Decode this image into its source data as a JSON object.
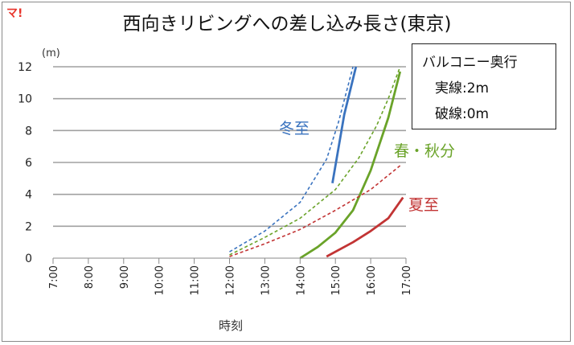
{
  "brand": "マ!",
  "chart_data": {
    "type": "line",
    "title": "西向きリビングへの差し込み長さ(東京)",
    "xlabel": "時刻",
    "ylabel": "",
    "yunit": "(m)",
    "xlim": [
      "7:00",
      "17:00"
    ],
    "ylim": [
      0,
      12
    ],
    "y_ticks": [
      0,
      2,
      4,
      6,
      8,
      10,
      12
    ],
    "x_ticks": [
      "7:00",
      "8:00",
      "9:00",
      "10:00",
      "11:00",
      "12:00",
      "13:00",
      "14:00",
      "15:00",
      "16:00",
      "17:00"
    ],
    "grid": true,
    "legend_box": {
      "title": "バルコニー奥行",
      "solid": "実線:2m",
      "dashed": "破線:0m"
    },
    "series": [
      {
        "name": "冬至",
        "style": "solid",
        "color": "#3a73bf",
        "x": [
          "14:55",
          "15:15",
          "15:35"
        ],
        "y": [
          4.7,
          9.0,
          12.0
        ]
      },
      {
        "name": "冬至",
        "style": "dashed",
        "color": "#3a73bf",
        "x": [
          "12:00",
          "13:00",
          "14:00",
          "14:45",
          "15:05",
          "15:30"
        ],
        "y": [
          0.4,
          1.7,
          3.5,
          6.2,
          8.5,
          12.0
        ]
      },
      {
        "name": "春・秋分",
        "style": "solid",
        "color": "#6aa329",
        "x": [
          "14:00",
          "14:30",
          "15:00",
          "15:30",
          "16:00",
          "16:30",
          "16:50"
        ],
        "y": [
          0.0,
          0.7,
          1.6,
          3.0,
          5.5,
          8.8,
          11.7
        ]
      },
      {
        "name": "春・秋分",
        "style": "dashed",
        "color": "#6aa329",
        "x": [
          "12:00",
          "13:00",
          "14:00",
          "15:00",
          "15:40",
          "16:10",
          "16:30",
          "16:50"
        ],
        "y": [
          0.2,
          1.3,
          2.5,
          4.3,
          6.3,
          8.3,
          10.0,
          12.0
        ]
      },
      {
        "name": "夏至",
        "style": "solid",
        "color": "#c23434",
        "x": [
          "14:45",
          "15:30",
          "16:00",
          "16:30",
          "16:55"
        ],
        "y": [
          0.1,
          1.0,
          1.7,
          2.5,
          3.8
        ]
      },
      {
        "name": "夏至",
        "style": "dashed",
        "color": "#c23434",
        "x": [
          "12:00",
          "13:00",
          "14:00",
          "15:00",
          "16:00",
          "16:50"
        ],
        "y": [
          0.1,
          0.9,
          1.8,
          3.0,
          4.3,
          5.8
        ]
      }
    ],
    "annotations": [
      {
        "text": "冬至",
        "color": "#3a73bf"
      },
      {
        "text": "春・秋分",
        "color": "#6aa329"
      },
      {
        "text": "夏至",
        "color": "#c23434"
      }
    ]
  }
}
